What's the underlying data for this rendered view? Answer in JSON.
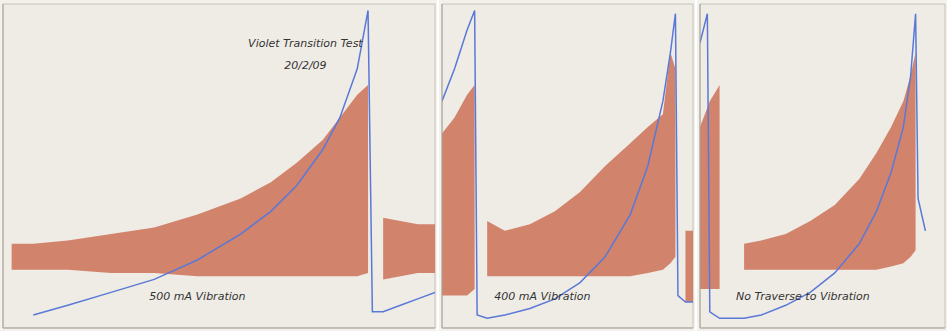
{
  "chart_data": [
    {
      "type": "line",
      "xlim": [
        0,
        100
      ],
      "ylim": [
        0,
        100
      ],
      "xticks": [
        0,
        10,
        20,
        30,
        40,
        50,
        60,
        70,
        80,
        90,
        100
      ],
      "yticks": [
        0,
        10,
        20,
        30,
        40,
        50,
        60,
        70,
        80,
        90,
        100
      ],
      "grid": true,
      "tick_labels": false,
      "x": [
        2,
        7,
        15,
        25,
        35,
        45,
        55,
        62,
        68,
        74,
        78,
        82,
        84.5,
        85.5,
        88,
        92,
        96,
        100
      ],
      "series": [
        {
          "type": "line",
          "color": "#5a78d8",
          "values": [
            null,
            4,
            7,
            11,
            15,
            21,
            29,
            36,
            44,
            55,
            65,
            80,
            98,
            5,
            5,
            7,
            9,
            11
          ]
        },
        {
          "type": "area",
          "color": "#c9694d",
          "low": [
            18,
            18,
            18,
            17,
            17,
            16,
            16,
            16,
            16,
            16,
            16,
            16,
            17,
            null,
            15,
            16,
            17,
            17
          ],
          "high": [
            26,
            26,
            27,
            29,
            31,
            35,
            40,
            45,
            51,
            58,
            65,
            72,
            75,
            null,
            34,
            33,
            32,
            32
          ]
        }
      ],
      "annotations": [
        {
          "text": "Violet Transition Test",
          "x": 70,
          "y": 88
        },
        {
          "text": "20/2/09",
          "x": 70,
          "y": 81
        },
        {
          "text": "500 mA Vibration",
          "x": 45,
          "y": 10
        }
      ]
    },
    {
      "type": "line",
      "xlim": [
        0,
        100
      ],
      "ylim": [
        0,
        100
      ],
      "xticks": [
        0,
        10,
        20,
        30,
        40,
        50,
        60,
        70,
        80,
        90,
        100
      ],
      "yticks": [
        0,
        10,
        20,
        30,
        40,
        50,
        60,
        70,
        80,
        90,
        100
      ],
      "grid": true,
      "tick_labels": false,
      "x": [
        0,
        5,
        10,
        13,
        14,
        18,
        25,
        35,
        45,
        55,
        65,
        75,
        82,
        88,
        91,
        93,
        94,
        97,
        100
      ],
      "series": [
        {
          "type": "line",
          "color": "#5a78d8",
          "values": [
            70,
            80,
            92,
            98,
            4,
            3,
            4,
            6,
            9,
            14,
            22,
            35,
            50,
            70,
            85,
            97,
            10,
            8,
            8
          ]
        },
        {
          "type": "area",
          "color": "#c9694d",
          "low": [
            10,
            10,
            10,
            12,
            null,
            16,
            16,
            16,
            16,
            16,
            16,
            16,
            17,
            18,
            20,
            22,
            null,
            8,
            8
          ],
          "high": [
            60,
            65,
            72,
            75,
            null,
            33,
            30,
            32,
            36,
            42,
            50,
            57,
            62,
            66,
            85,
            80,
            null,
            30,
            30
          ]
        }
      ],
      "annotations": [
        {
          "text": "400 mA Vibration",
          "x": 40,
          "y": 10
        }
      ]
    },
    {
      "type": "line",
      "xlim": [
        0,
        100
      ],
      "ylim": [
        0,
        100
      ],
      "xticks": [
        0,
        10,
        20,
        30,
        40,
        50,
        60,
        70,
        80,
        90,
        100
      ],
      "yticks": [
        0,
        10,
        20,
        30,
        40,
        50,
        60,
        70,
        80,
        90,
        100
      ],
      "grid": true,
      "tick_labels": false,
      "x": [
        0,
        3,
        4,
        8,
        12,
        18,
        25,
        35,
        45,
        55,
        65,
        72,
        78,
        83,
        86,
        88,
        89,
        92
      ],
      "series": [
        {
          "type": "line",
          "color": "#5a78d8",
          "values": [
            88,
            97,
            5,
            3,
            3,
            3,
            4,
            7,
            11,
            17,
            26,
            36,
            48,
            62,
            78,
            97,
            40,
            30
          ]
        },
        {
          "type": "area",
          "color": "#c9694d",
          "low": [
            12,
            12,
            12,
            12,
            null,
            18,
            18,
            18,
            18,
            18,
            18,
            18,
            19,
            20,
            22,
            24,
            null,
            null
          ],
          "high": [
            62,
            68,
            70,
            75,
            null,
            26,
            27,
            29,
            33,
            38,
            46,
            54,
            62,
            70,
            78,
            85,
            null,
            null
          ]
        }
      ],
      "annotations": [
        {
          "text": "No Traverse to Vibration",
          "x": 42,
          "y": 10
        }
      ]
    }
  ]
}
